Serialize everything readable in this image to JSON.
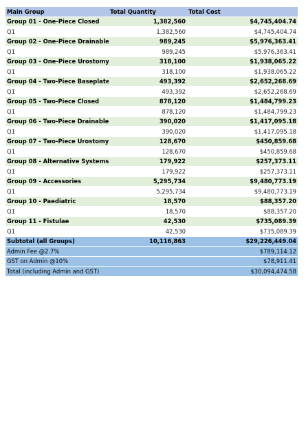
{
  "headers": {
    "group": "Main Group",
    "qty": "Total Quantity",
    "cost": "Total Cost"
  },
  "groups": [
    {
      "name": "Group 01 - One-Piece Closed",
      "qty": "1,382,560",
      "cost": "$4,745,404.74",
      "sub": {
        "label": "Q1",
        "qty": "1,382,560",
        "cost": "$4,745,404.74"
      }
    },
    {
      "name": "Group 02 - One-Piece Drainable",
      "qty": "989,245",
      "cost": "$5,976,363.41",
      "sub": {
        "label": "Q1",
        "qty": "989,245",
        "cost": "$5,976,363.41"
      }
    },
    {
      "name": "Group 03 - One-Piece Urostomy",
      "qty": "318,100",
      "cost": "$1,938,065.22",
      "sub": {
        "label": "Q1",
        "qty": "318,100",
        "cost": "$1,938,065.22"
      }
    },
    {
      "name": "Group 04 - Two-Piece Baseplate",
      "qty": "493,392",
      "cost": "$2,652,268.69",
      "sub": {
        "label": "Q1",
        "qty": "493,392",
        "cost": "$2,652,268.69"
      }
    },
    {
      "name": "Group 05 - Two-Piece Closed",
      "qty": "878,120",
      "cost": "$1,484,799.23",
      "sub": {
        "label": "Q1",
        "qty": "878,120",
        "cost": "$1,484,799.23"
      }
    },
    {
      "name": "Group 06 - Two-Piece Drainable",
      "qty": "390,020",
      "cost": "$1,417,095.18",
      "sub": {
        "label": "Q1",
        "qty": "390,020",
        "cost": "$1,417,095.18"
      }
    },
    {
      "name": "Group 07 - Two-Piece Urostomy",
      "qty": "128,670",
      "cost": "$450,859.68",
      "sub": {
        "label": "Q1",
        "qty": "128,670",
        "cost": "$450,859.68"
      }
    },
    {
      "name": "Group 08 - Alternative Systems",
      "qty": "179,922",
      "cost": "$257,373.11",
      "sub": {
        "label": "Q1",
        "qty": "179,922",
        "cost": "$257,373.11"
      }
    },
    {
      "name": "Group 09 - Accessories",
      "qty": "5,295,734",
      "cost": "$9,480,773.19",
      "sub": {
        "label": "Q1",
        "qty": "5,295,734",
        "cost": "$9,480,773.19"
      }
    },
    {
      "name": "Group 10 - Paediatric",
      "qty": "18,570",
      "cost": "$88,357.20",
      "sub": {
        "label": "Q1",
        "qty": "18,570",
        "cost": "$88,357.20"
      }
    },
    {
      "name": "Group 11 - Fistulae",
      "qty": "42,530",
      "cost": "$735,089.39",
      "sub": {
        "label": "Q1",
        "qty": "42,530",
        "cost": "$735,089.39"
      }
    }
  ],
  "summary": [
    {
      "label": "Subtotal (all Groups)",
      "qty": "10,116,863",
      "cost": "$29,226,449.04",
      "bold": true
    },
    {
      "label": "Admin Fee @2.7%",
      "qty": "",
      "cost": "$789,114.12",
      "bold": false
    },
    {
      "label": "GST on Admin @10%",
      "qty": "",
      "cost": "$78,911.41",
      "bold": false
    },
    {
      "label": "Total (including Admin and GST)",
      "qty": "",
      "cost": "$30,094,474.58",
      "bold": false
    }
  ]
}
